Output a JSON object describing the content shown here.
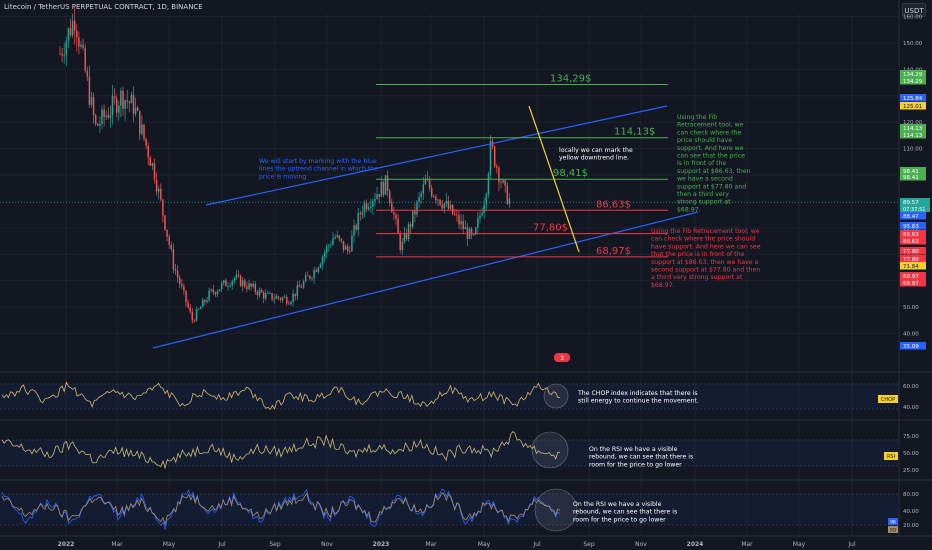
{
  "header": {
    "title": "Litecoin / TetherUS PERPETUAL CONTRACT, 1D, BINANCE",
    "currency": "USDT"
  },
  "colors": {
    "background": "#131722",
    "grid": "#1e222d",
    "up": "#26a69a",
    "down": "#ef5350",
    "channel": "#2962ff",
    "fib_green": "#4caf50",
    "fib_red": "#f23645",
    "downtrend": "#f5d02f",
    "note_green": "#4caf50",
    "note_red": "#f23645",
    "note_blue": "#2962ff",
    "chop": "#d4b86a",
    "rsi": "#c8b97a",
    "stoch_k": "#2962ff",
    "stoch_d": "#a58d6c"
  },
  "chart_data": {
    "type": "candlestick",
    "title": "Litecoin / TetherUS PERPETUAL CONTRACT, 1D, BINANCE",
    "x_tick_labels": [
      "2022",
      "Mar",
      "May",
      "Jul",
      "Sep",
      "Nov",
      "2023",
      "Mar",
      "May",
      "Jul",
      "Sep",
      "Nov",
      "2024",
      "Mar",
      "May",
      "Jul"
    ],
    "y_tick_labels": [
      "160.00",
      "150.00",
      "140.00",
      "130.00",
      "120.00",
      "110.00",
      "100.00",
      "90.00",
      "80.00",
      "70.00",
      "60.00",
      "50.00",
      "40.00"
    ],
    "price_path": [
      {
        "x": "2022-01-01",
        "y": 146
      },
      {
        "x": "2022-01-20",
        "y": 160
      },
      {
        "x": "2022-02-15",
        "y": 118
      },
      {
        "x": "2022-03-20",
        "y": 130
      },
      {
        "x": "2022-04-05",
        "y": 126
      },
      {
        "x": "2022-05-01",
        "y": 101
      },
      {
        "x": "2022-05-25",
        "y": 66
      },
      {
        "x": "2022-06-18",
        "y": 45
      },
      {
        "x": "2022-07-10",
        "y": 55
      },
      {
        "x": "2022-08-10",
        "y": 61
      },
      {
        "x": "2022-09-20",
        "y": 54
      },
      {
        "x": "2022-10-20",
        "y": 53
      },
      {
        "x": "2022-11-20",
        "y": 64
      },
      {
        "x": "2022-12-15",
        "y": 77
      },
      {
        "x": "2023-01-01",
        "y": 71
      },
      {
        "x": "2023-01-20",
        "y": 88
      },
      {
        "x": "2023-02-20",
        "y": 97
      },
      {
        "x": "2023-03-10",
        "y": 72
      },
      {
        "x": "2023-04-10",
        "y": 97
      },
      {
        "x": "2023-05-10",
        "y": 87
      },
      {
        "x": "2023-06-10",
        "y": 75
      },
      {
        "x": "2023-06-25",
        "y": 93
      },
      {
        "x": "2023-07-02",
        "y": 111
      },
      {
        "x": "2023-07-20",
        "y": 93
      },
      {
        "x": "2023-07-28",
        "y": 89.57
      }
    ],
    "last_price": 89.57,
    "last_price_timer": "07:37:51",
    "levels": [
      {
        "label": "134,29$",
        "value": 134.29,
        "color": "green"
      },
      {
        "label": "114,13$",
        "value": 114.13,
        "color": "green"
      },
      {
        "label": "98,41$",
        "value": 98.41,
        "color": "green"
      },
      {
        "label": "86,63$",
        "value": 86.63,
        "color": "red"
      },
      {
        "label": "77,80$",
        "value": 77.8,
        "color": "red"
      },
      {
        "label": "68,97$",
        "value": 68.97,
        "color": "red"
      }
    ],
    "price_axis_badges": [
      {
        "text": "134.29",
        "bg": "#4caf50"
      },
      {
        "text": "134.29",
        "bg": "#4caf50"
      },
      {
        "text": "125.84",
        "bg": "#2962ff"
      },
      {
        "text": "125.01",
        "bg": "#f5d02f"
      },
      {
        "text": "114.13",
        "bg": "#4caf50"
      },
      {
        "text": "114.13",
        "bg": "#4caf50"
      },
      {
        "text": "98.41",
        "bg": "#4caf50"
      },
      {
        "text": "98.41",
        "bg": "#4caf50"
      },
      {
        "text": "89.57",
        "bg": "#26a69a"
      },
      {
        "text": "88.47",
        "bg": "#2962ff"
      },
      {
        "text": "95.63",
        "bg": "#2962ff"
      },
      {
        "text": "86.63",
        "bg": "#f23645"
      },
      {
        "text": "86.63",
        "bg": "#f23645"
      },
      {
        "text": "77.80",
        "bg": "#f23645"
      },
      {
        "text": "77.80",
        "bg": "#f23645"
      },
      {
        "text": "71.84",
        "bg": "#f5d02f"
      },
      {
        "text": "68.97",
        "bg": "#f23645"
      },
      {
        "text": "68.97",
        "bg": "#f23645"
      },
      {
        "text": "35.09",
        "bg": "#2962ff"
      }
    ],
    "event_marker": "3",
    "annotations": {
      "channel_note": "We will start by marking with the blue lines the uptrend channel in which the price is moving",
      "downtrend_note": "locally we can mark the yellow downtrend line.",
      "fib_note_green": "Using the Fib Retracement tool, we can check where the price should have support. And here we can see that the price is in front of the support at $86.63, then we have a second support at $77.80 and then a third very strong support at $68.97.",
      "fib_note_red": "Using the Fib Retracement tool, we can check where the price should have support. And here we can see that the price is in front of the support at $86.63, then we have a second support at $77.80 and then a third very strong support at $68.97."
    },
    "indicators": [
      {
        "name": "CHOP",
        "y_tick_labels": [
          "60.00",
          "40.00"
        ],
        "bands": [
          61.8,
          38.2
        ],
        "series_samples": [
          49,
          58,
          44,
          62,
          40,
          55,
          47,
          60,
          42,
          53,
          49,
          57,
          38,
          51,
          46,
          59,
          43,
          55,
          50,
          41,
          58,
          45,
          52,
          40,
          61,
          48
        ],
        "badge": "CHOP",
        "note": "The CHOP index indicates that there is still energy to continue the movement."
      },
      {
        "name": "RSI",
        "y_tick_labels": [
          "75.00",
          "50.00",
          "25.00"
        ],
        "bands": [
          70,
          30
        ],
        "series_samples": [
          60,
          52,
          45,
          58,
          38,
          50,
          42,
          35,
          47,
          55,
          40,
          52,
          48,
          58,
          62,
          45,
          55,
          50,
          60,
          42,
          55,
          47,
          68,
          50,
          44
        ],
        "badge": "RSI",
        "note": "On the RSI we have a visible rebound, we can see that there is room for the price to go lower"
      },
      {
        "name": "Stoch",
        "y_tick_labels": [
          "80.00",
          "40.00",
          "20.00"
        ],
        "bands": [
          80,
          20
        ],
        "series_samples_k": [
          80,
          20,
          65,
          15,
          85,
          30,
          70,
          10,
          90,
          40,
          75,
          20,
          60,
          85,
          25,
          70,
          15,
          80,
          35,
          90,
          20,
          65,
          12,
          75,
          30
        ],
        "series_samples_d": [
          70,
          35,
          55,
          25,
          75,
          40,
          60,
          22,
          80,
          48,
          68,
          30,
          55,
          75,
          35,
          62,
          25,
          72,
          42,
          80,
          30,
          58,
          22,
          68,
          38
        ],
        "badge_k": "9K",
        "badge_d": "9D",
        "note": "On the RSI we have a visible rebound, we can see that there is room for the price to go lower"
      }
    ]
  }
}
